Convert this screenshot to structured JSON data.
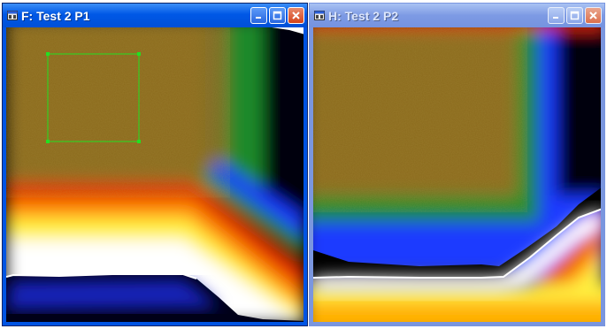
{
  "windows": [
    {
      "id": "F",
      "title": "F: Test 2 P1",
      "state": "active",
      "icons": [
        "window-system-icon",
        "minimize-icon",
        "maximize-icon",
        "close-icon"
      ],
      "selection_rectangle_color": "#22e022"
    },
    {
      "id": "H",
      "title": "H: Test 2 P2",
      "state": "inactive",
      "icons": [
        "window-system-icon",
        "minimize-icon",
        "maximize-icon",
        "close-icon"
      ]
    }
  ],
  "colors": {
    "active_title": "#0054e3",
    "inactive_title": "#7a96df",
    "close_button": "#d4431b",
    "heat_brown": "#8a6a1e",
    "heat_green": "#1a9a1a",
    "heat_blue": "#1a3aff",
    "heat_red": "#e02a00",
    "heat_yellow": "#fff040"
  }
}
